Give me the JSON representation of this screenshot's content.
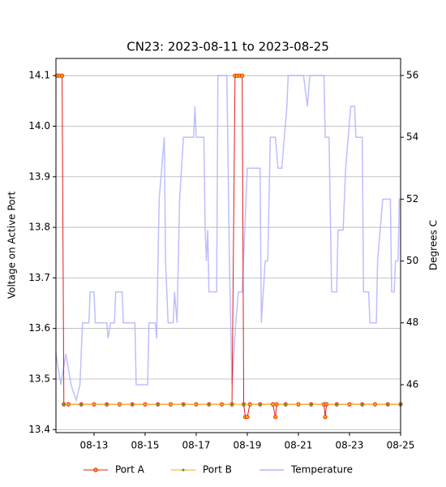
{
  "chart_data": {
    "type": "line",
    "title": "CN23: 2023-08-11 to 2023-08-25",
    "ylabel": "Voltage on Active Port",
    "y2label": "Degrees C",
    "xlim": [
      11.51,
      25
    ],
    "xticks": [
      {
        "value": 13,
        "label": "08-13"
      },
      {
        "value": 15,
        "label": "08-15"
      },
      {
        "value": 17,
        "label": "08-17"
      },
      {
        "value": 19,
        "label": "08-19"
      },
      {
        "value": 21,
        "label": "08-21"
      },
      {
        "value": 23,
        "label": "08-23"
      },
      {
        "value": 25,
        "label": "08-25"
      }
    ],
    "ylim": [
      13.394,
      14.134
    ],
    "yticks": [
      13.4,
      13.5,
      13.6,
      13.7,
      13.8,
      13.9,
      {
        "value": 14,
        "label": "14.0"
      },
      14.1
    ],
    "y2lim": [
      44.45,
      56.55
    ],
    "y2ticks": [
      46,
      48,
      50,
      52,
      54,
      56
    ],
    "grid": true,
    "legend": "bottom",
    "series": [
      {
        "name": "Port A",
        "color": "#e41a1c",
        "marker_color": "#ffa500",
        "x": [
          11.55,
          11.65,
          11.75,
          11.82,
          12.0,
          12.5,
          13.0,
          13.5,
          14.0,
          14.5,
          15.0,
          15.5,
          16.0,
          16.5,
          17.0,
          17.5,
          18.0,
          18.4,
          18.52,
          18.6,
          18.7,
          18.8,
          18.86,
          18.92,
          19.0,
          19.1,
          19.5,
          20.0,
          20.1,
          20.15,
          20.5,
          21.0,
          21.5,
          22.0,
          22.05,
          22.1,
          22.5,
          23.0,
          23.5,
          24.0,
          24.5,
          25.0
        ],
        "values": [
          14.1,
          14.1,
          14.1,
          13.45,
          13.45,
          13.45,
          13.45,
          13.45,
          13.45,
          13.45,
          13.45,
          13.45,
          13.45,
          13.45,
          13.45,
          13.45,
          13.45,
          13.45,
          14.1,
          14.1,
          14.1,
          14.1,
          13.45,
          13.425,
          13.425,
          13.45,
          13.45,
          13.45,
          13.425,
          13.45,
          13.45,
          13.45,
          13.45,
          13.45,
          13.425,
          13.45,
          13.45,
          13.45,
          13.45,
          13.45,
          13.45,
          13.45
        ]
      },
      {
        "name": "Port B",
        "color": "#ffa500",
        "marker_color": "#2ca02c",
        "x": [
          11.82,
          12.5,
          13.5,
          14.5,
          15.5,
          16.5,
          17.5,
          18.4,
          18.86,
          19.5,
          20.5,
          21.5,
          22.5,
          23.5,
          24.5,
          25.0
        ],
        "values": [
          13.45,
          13.45,
          13.45,
          13.45,
          13.45,
          13.45,
          13.45,
          13.45,
          13.45,
          13.45,
          13.45,
          13.45,
          13.45,
          13.45,
          13.45,
          13.45
        ]
      },
      {
        "name": "Temperature",
        "color": "#b3b3ff",
        "axis": "y2",
        "x": [
          11.51,
          11.7,
          11.9,
          12.1,
          12.3,
          12.45,
          12.55,
          12.8,
          12.85,
          13.0,
          13.05,
          13.5,
          13.55,
          13.65,
          13.8,
          13.85,
          14.1,
          14.15,
          14.6,
          14.65,
          15.1,
          15.15,
          15.4,
          15.45,
          15.55,
          15.65,
          15.75,
          15.8,
          15.9,
          16.1,
          16.15,
          16.25,
          16.35,
          16.5,
          16.9,
          16.95,
          17.0,
          17.3,
          17.35,
          17.4,
          17.45,
          17.5,
          17.8,
          17.85,
          18.2,
          18.3,
          18.4,
          18.55,
          18.65,
          18.8,
          19.0,
          19.5,
          19.55,
          19.7,
          19.8,
          19.9,
          20.1,
          20.2,
          20.35,
          20.45,
          20.55,
          20.6,
          21.2,
          21.35,
          21.45,
          22.0,
          22.05,
          22.2,
          22.3,
          22.5,
          22.55,
          22.75,
          22.85,
          23.05,
          23.2,
          23.25,
          23.5,
          23.55,
          23.75,
          23.8,
          24.05,
          24.1,
          24.2,
          24.3,
          24.6,
          24.65,
          24.75,
          24.8,
          24.9,
          24.95,
          25.0
        ],
        "values": [
          47,
          46,
          47,
          46,
          45.5,
          46,
          48,
          48,
          49,
          49,
          48,
          48,
          47.5,
          48,
          48,
          49,
          49,
          48,
          48,
          46,
          46,
          48,
          48,
          47.5,
          52,
          53,
          54,
          50,
          48,
          48,
          49,
          48,
          52,
          54,
          54,
          55,
          54,
          54,
          51,
          50,
          51,
          49,
          49,
          56,
          56,
          50,
          46,
          48,
          49,
          49,
          53,
          53,
          48,
          50,
          50,
          54,
          54,
          53,
          53,
          54,
          55,
          56,
          56,
          55,
          56,
          56,
          54,
          54,
          49,
          49,
          51,
          51,
          53,
          55,
          55,
          54,
          54,
          49,
          49,
          48,
          48,
          50,
          51,
          52,
          52,
          49,
          49,
          50,
          50,
          52,
          52
        ]
      }
    ]
  }
}
